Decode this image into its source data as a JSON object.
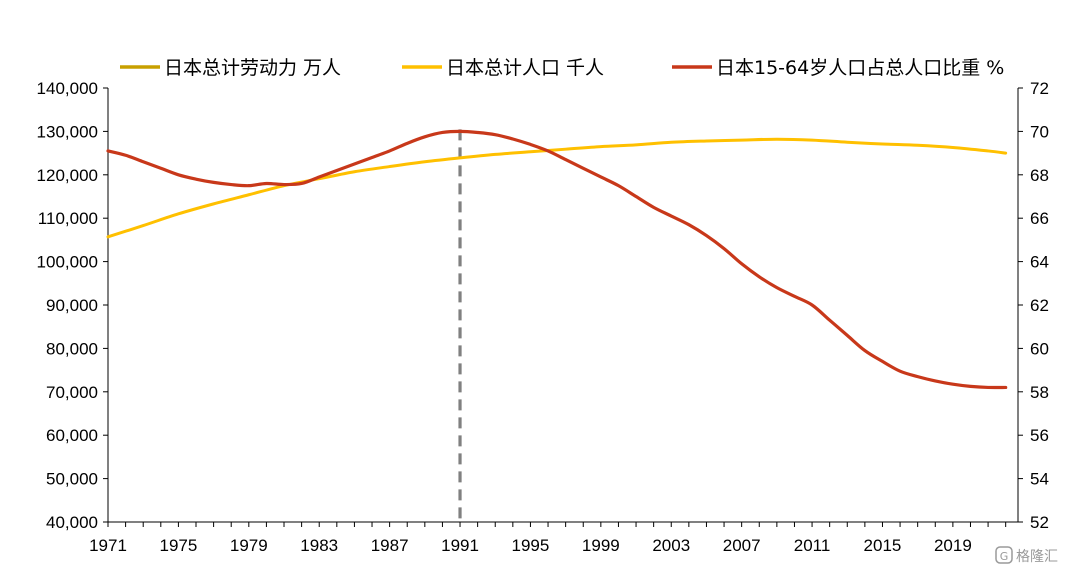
{
  "chart_data": {
    "type": "line",
    "title": "",
    "xlabel": "",
    "ylabel_left": "",
    "ylabel_right": "",
    "x_tick_labels": [
      "1971",
      "1975",
      "1979",
      "1983",
      "1987",
      "1991",
      "1995",
      "1999",
      "2003",
      "2007",
      "2011",
      "2015",
      "2019"
    ],
    "xlim": [
      1971,
      2022.7
    ],
    "y_left": {
      "ylim": [
        40000,
        140000
      ],
      "ticks": [
        "40,000",
        "50,000",
        "60,000",
        "70,000",
        "80,000",
        "90,000",
        "100,000",
        "110,000",
        "120,000",
        "130,000",
        "140,000"
      ]
    },
    "y_right": {
      "ylim": [
        52,
        72
      ],
      "ticks": [
        "52",
        "54",
        "56",
        "58",
        "60",
        "62",
        "64",
        "66",
        "68",
        "70",
        "72"
      ]
    },
    "reference_line": {
      "x": 1991,
      "style": "dashed",
      "color": "#808080"
    },
    "legend_position": "top",
    "series": [
      {
        "name": "日本总计劳动力 万人",
        "axis": "left",
        "color": "#C8A000",
        "x": [],
        "values": []
      },
      {
        "name": "日本总计人口 千人",
        "axis": "left",
        "color": "#FFC000",
        "x": [
          1971,
          1973,
          1975,
          1977,
          1979,
          1981,
          1983,
          1985,
          1987,
          1989,
          1991,
          1993,
          1995,
          1997,
          1999,
          2001,
          2003,
          2005,
          2007,
          2009,
          2011,
          2013,
          2015,
          2017,
          2019,
          2021,
          2022
        ],
        "values": [
          105700,
          108300,
          111000,
          113300,
          115400,
          117500,
          119100,
          120700,
          121900,
          123000,
          123900,
          124700,
          125300,
          125900,
          126500,
          126900,
          127500,
          127800,
          128000,
          128200,
          128000,
          127500,
          127100,
          126800,
          126300,
          125500,
          125000
        ]
      },
      {
        "name": "日本15-64岁人口占总人口比重 %",
        "axis": "right",
        "color": "#C8381A",
        "x": [
          1971,
          1972,
          1973,
          1974,
          1975,
          1976,
          1977,
          1978,
          1979,
          1980,
          1981,
          1982,
          1983,
          1984,
          1985,
          1986,
          1987,
          1988,
          1989,
          1990,
          1991,
          1992,
          1993,
          1994,
          1995,
          1996,
          1997,
          1998,
          1999,
          2000,
          2001,
          2002,
          2003,
          2004,
          2005,
          2006,
          2007,
          2008,
          2009,
          2010,
          2011,
          2012,
          2013,
          2014,
          2015,
          2016,
          2017,
          2018,
          2019,
          2020,
          2021,
          2022
        ],
        "values": [
          69.1,
          68.9,
          68.6,
          68.3,
          68.0,
          67.8,
          67.65,
          67.55,
          67.5,
          67.6,
          67.55,
          67.6,
          67.9,
          68.2,
          68.5,
          68.8,
          69.1,
          69.45,
          69.75,
          69.95,
          70.0,
          69.95,
          69.85,
          69.65,
          69.4,
          69.1,
          68.7,
          68.3,
          67.9,
          67.5,
          67.0,
          66.5,
          66.1,
          65.7,
          65.2,
          64.6,
          63.9,
          63.3,
          62.8,
          62.4,
          62.0,
          61.3,
          60.6,
          59.9,
          59.4,
          58.95,
          58.7,
          58.5,
          58.35,
          58.25,
          58.2,
          58.2
        ]
      }
    ]
  },
  "watermark": "格隆汇"
}
